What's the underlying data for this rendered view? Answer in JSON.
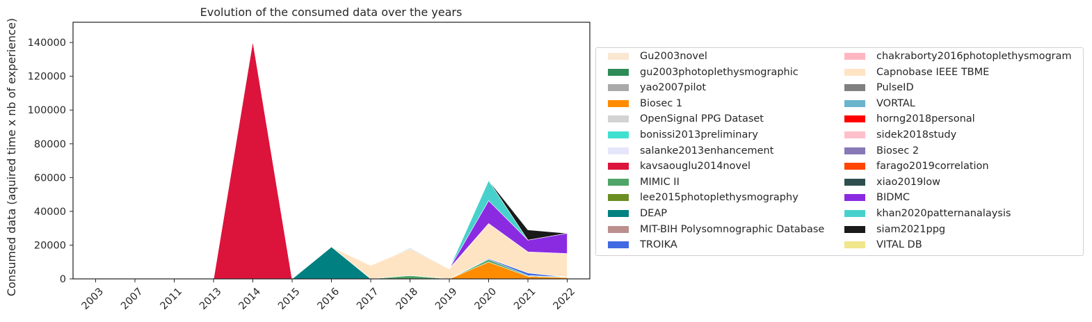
{
  "chart_data": {
    "type": "area",
    "title": "Evolution of the consumed data over the years",
    "xlabel": "",
    "ylabel": "Consumed data (aquired time x nb of experience)",
    "categories": [
      "2003",
      "2007",
      "2011",
      "2013",
      "2014",
      "2015",
      "2016",
      "2017",
      "2018",
      "2019",
      "2020",
      "2021",
      "2022"
    ],
    "yticks": [
      "0",
      "20000",
      "40000",
      "60000",
      "80000",
      "100000",
      "120000",
      "140000"
    ],
    "ylim": [
      0,
      152000
    ],
    "stacked": true,
    "grid": false,
    "legend_position": "right",
    "series": [
      {
        "name": "Gu2003novel",
        "color": "#fae7d2",
        "values": [
          0,
          0,
          0,
          0,
          0,
          0,
          0,
          0,
          0,
          0,
          0,
          0,
          0
        ]
      },
      {
        "name": "gu2003photoplethysmographic",
        "color": "#2e8b57",
        "values": [
          0,
          0,
          0,
          0,
          0,
          0,
          0,
          0,
          0,
          0,
          0,
          0,
          0
        ]
      },
      {
        "name": "yao2007pilot",
        "color": "#a9a9a9",
        "values": [
          0,
          0,
          0,
          0,
          0,
          0,
          0,
          0,
          0,
          0,
          0,
          0,
          0
        ]
      },
      {
        "name": "Biosec 1",
        "color": "#ff8c00",
        "values": [
          0,
          0,
          0,
          0,
          0,
          0,
          0,
          0,
          0,
          0,
          10000,
          1500,
          800
        ]
      },
      {
        "name": "OpenSignal PPG Dataset",
        "color": "#d3d3d3",
        "values": [
          0,
          0,
          0,
          0,
          0,
          0,
          0,
          0,
          0,
          0,
          0,
          0,
          0
        ]
      },
      {
        "name": "bonissi2013preliminary",
        "color": "#40e0d0",
        "values": [
          0,
          0,
          0,
          0,
          0,
          0,
          0,
          0,
          0,
          0,
          0,
          0,
          0
        ]
      },
      {
        "name": "salanke2013enhancement",
        "color": "#e6e6fa",
        "values": [
          0,
          0,
          0,
          0,
          0,
          0,
          0,
          0,
          0,
          0,
          0,
          0,
          0
        ]
      },
      {
        "name": "kavsaouglu2014novel",
        "color": "#dc143c",
        "values": [
          0,
          0,
          0,
          0,
          141000,
          0,
          0,
          0,
          0,
          0,
          0,
          0,
          0
        ]
      },
      {
        "name": "MIMIC II",
        "color": "#4ea567",
        "values": [
          0,
          0,
          0,
          0,
          0,
          0,
          0,
          0,
          2000,
          0,
          1500,
          500,
          200
        ]
      },
      {
        "name": "lee2015photoplethysmography",
        "color": "#6b8e23",
        "values": [
          0,
          0,
          0,
          0,
          0,
          0,
          0,
          0,
          0,
          0,
          0,
          0,
          0
        ]
      },
      {
        "name": "DEAP",
        "color": "#008080",
        "values": [
          0,
          0,
          0,
          0,
          0,
          0,
          19000,
          0,
          0,
          0,
          0,
          0,
          0
        ]
      },
      {
        "name": "MIT-BIH Polysomnographic Database",
        "color": "#bc8f8f",
        "values": [
          0,
          0,
          0,
          0,
          0,
          0,
          0,
          0,
          0,
          0,
          0,
          0,
          0
        ]
      },
      {
        "name": "TROIKA",
        "color": "#4169e1",
        "values": [
          0,
          0,
          0,
          0,
          0,
          0,
          0,
          0,
          0,
          0,
          500,
          1500,
          0
        ]
      },
      {
        "name": "chakraborty2016photoplethysmogram",
        "color": "#ffb6c1",
        "values": [
          0,
          0,
          0,
          0,
          0,
          0,
          0,
          0,
          0,
          0,
          0,
          0,
          0
        ]
      },
      {
        "name": "Capnobase IEEE TBME",
        "color": "#ffe4c4",
        "values": [
          0,
          0,
          0,
          0,
          0,
          0,
          0,
          8000,
          15800,
          5800,
          20800,
          12500,
          14000
        ]
      },
      {
        "name": "PulseID",
        "color": "#808080",
        "values": [
          0,
          0,
          0,
          0,
          0,
          0,
          0,
          0,
          0,
          0,
          0,
          0,
          0
        ]
      },
      {
        "name": "VORTAL",
        "color": "#6ab4cc",
        "values": [
          0,
          0,
          0,
          0,
          0,
          0,
          0,
          0,
          500,
          300,
          0,
          0,
          0
        ]
      },
      {
        "name": "horng2018personal",
        "color": "#ff0000",
        "values": [
          0,
          0,
          0,
          0,
          0,
          0,
          0,
          0,
          0,
          0,
          0,
          0,
          0
        ]
      },
      {
        "name": "sidek2018study",
        "color": "#ffc0cb",
        "values": [
          0,
          0,
          0,
          0,
          0,
          0,
          0,
          0,
          0,
          0,
          0,
          0,
          0
        ]
      },
      {
        "name": "Biosec 2",
        "color": "#8878b8",
        "values": [
          0,
          0,
          0,
          0,
          0,
          0,
          0,
          0,
          0,
          0,
          0,
          0,
          0
        ]
      },
      {
        "name": "farago2019correlation",
        "color": "#ff4500",
        "values": [
          0,
          0,
          0,
          0,
          0,
          0,
          0,
          0,
          0,
          0,
          0,
          0,
          0
        ]
      },
      {
        "name": "xiao2019low",
        "color": "#2f4f4f",
        "values": [
          0,
          0,
          0,
          0,
          0,
          0,
          0,
          0,
          0,
          0,
          0,
          0,
          0
        ]
      },
      {
        "name": "BIDMC",
        "color": "#8a2be2",
        "values": [
          0,
          0,
          0,
          0,
          0,
          0,
          0,
          0,
          0,
          0,
          13500,
          7000,
          12000
        ]
      },
      {
        "name": "khan2020patternanalaysis",
        "color": "#48d1cc",
        "values": [
          0,
          0,
          0,
          0,
          0,
          0,
          0,
          0,
          0,
          0,
          12000,
          0,
          0
        ]
      },
      {
        "name": "siam2021ppg",
        "color": "#1a1a1a",
        "values": [
          0,
          0,
          0,
          0,
          0,
          0,
          0,
          0,
          0,
          0,
          0,
          6000,
          0
        ]
      },
      {
        "name": "VITAL DB",
        "color": "#f0e68c",
        "values": [
          0,
          0,
          0,
          0,
          0,
          0,
          0,
          0,
          0,
          0,
          0,
          0,
          0
        ]
      }
    ]
  }
}
